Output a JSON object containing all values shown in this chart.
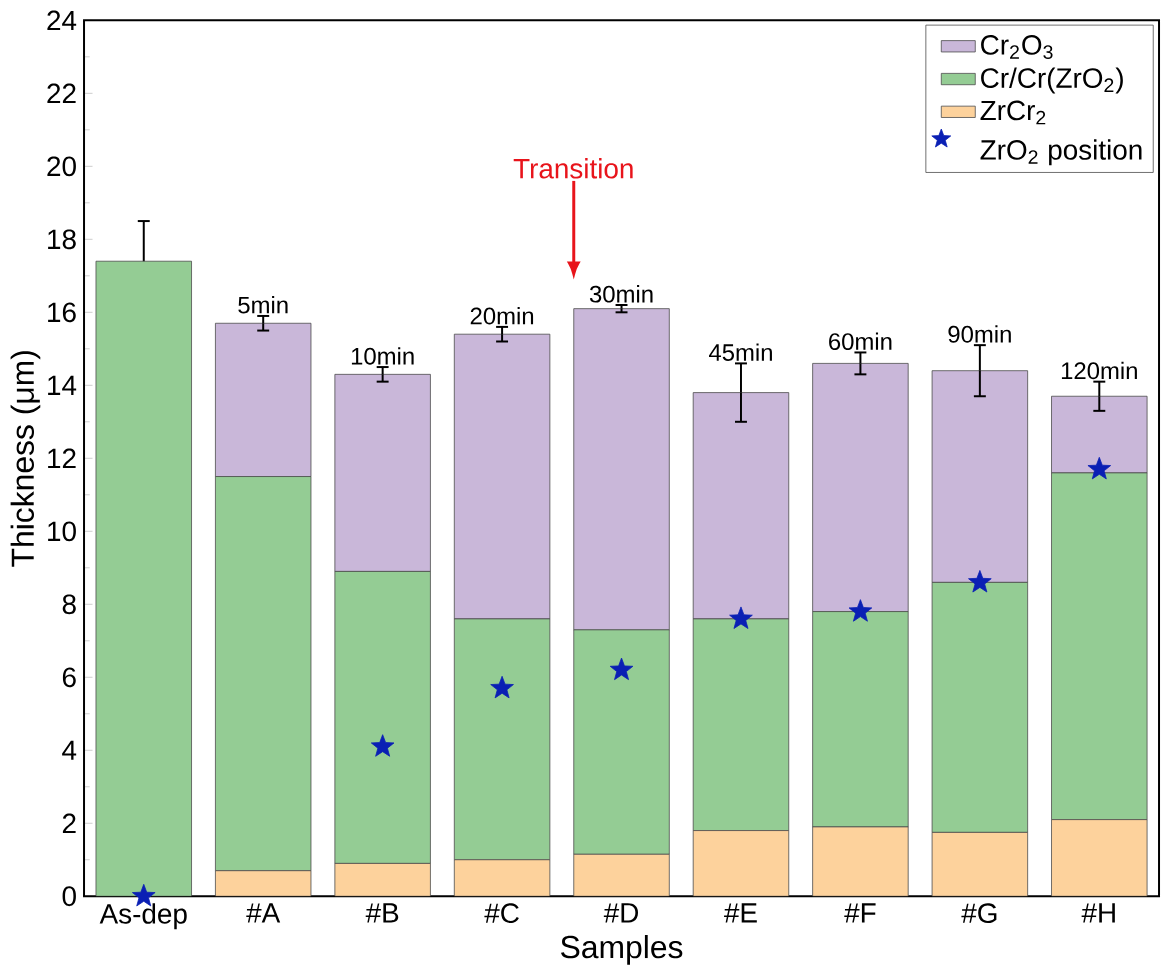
{
  "chart_data": {
    "type": "bar",
    "stacked": true,
    "xlabel": "Samples",
    "ylabel": "Thickness (μm)",
    "categories": [
      "As-dep",
      "#A",
      "#B",
      "#C",
      "#D",
      "#E",
      "#F",
      "#G",
      "#H"
    ],
    "series": [
      {
        "name": "ZrCr$_{2}$",
        "color": "#fdd29c",
        "values": [
          0,
          0.7,
          0.9,
          1.0,
          1.15,
          1.8,
          1.9,
          1.75,
          2.1
        ]
      },
      {
        "name": "Cr/Cr(ZrO$_{2}$)",
        "color": "#94cc94",
        "values": [
          17.4,
          10.8,
          8.0,
          6.6,
          6.15,
          5.8,
          5.9,
          6.85,
          9.5
        ]
      },
      {
        "name": "Cr$_{2}$O$_{3}$",
        "color": "#c9b7d9",
        "values": [
          0,
          4.2,
          5.4,
          7.8,
          8.8,
          6.2,
          6.8,
          5.8,
          2.1
        ],
        "errors": [
          1.1,
          0.2,
          0.2,
          0.2,
          0.1,
          0.8,
          0.3,
          0.7,
          0.4
        ]
      },
      {
        "name": "ZrO$_{2}$ position",
        "type": "scatter",
        "marker": "star",
        "color": "#0a1fb4",
        "x": [
          "As-dep",
          "#B",
          "#C",
          "#D",
          "#E",
          "#F",
          "#G",
          "#H"
        ],
        "values": [
          0,
          4.1,
          5.7,
          6.2,
          7.6,
          7.8,
          8.6,
          11.7
        ]
      }
    ],
    "ylim": [
      0,
      24
    ],
    "yticks": [
      0,
      2,
      4,
      6,
      8,
      10,
      12,
      14,
      16,
      18,
      20,
      22,
      24
    ],
    "legend": "top right",
    "annotations": [
      {
        "text": "5min",
        "x": "#A",
        "y": 15.9
      },
      {
        "text": "10min",
        "x": "#B",
        "y": 14.5
      },
      {
        "text": "20min",
        "x": "#C",
        "y": 15.6
      },
      {
        "text": "30min",
        "x": "#D",
        "y": 16.2
      },
      {
        "text": "45min",
        "x": "#E",
        "y": 14.6
      },
      {
        "text": "60min",
        "x": "#F",
        "y": 14.9
      },
      {
        "text": "90min",
        "x": "#G",
        "y": 15.1
      },
      {
        "text": "120min",
        "x": "#H",
        "y": 14.1
      },
      "Transition"
    ]
  }
}
